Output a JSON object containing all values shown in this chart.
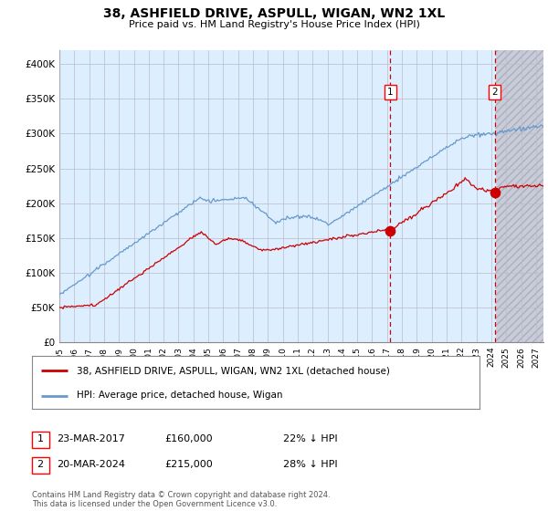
{
  "title": "38, ASHFIELD DRIVE, ASPULL, WIGAN, WN2 1XL",
  "subtitle": "Price paid vs. HM Land Registry's House Price Index (HPI)",
  "ylabel_ticks": [
    "£0",
    "£50K",
    "£100K",
    "£150K",
    "£200K",
    "£250K",
    "£300K",
    "£350K",
    "£400K"
  ],
  "ytick_values": [
    0,
    50000,
    100000,
    150000,
    200000,
    250000,
    300000,
    350000,
    400000
  ],
  "ylim": [
    0,
    420000
  ],
  "sale1_price": 160000,
  "sale1_label": "1",
  "sale1_text": "23-MAR-2017",
  "sale1_pct": "22% ↓ HPI",
  "sale2_price": 215000,
  "sale2_label": "2",
  "sale2_text": "20-MAR-2024",
  "sale2_pct": "28% ↓ HPI",
  "legend_house": "38, ASHFIELD DRIVE, ASPULL, WIGAN, WN2 1XL (detached house)",
  "legend_hpi": "HPI: Average price, detached house, Wigan",
  "footer": "Contains HM Land Registry data © Crown copyright and database right 2024.\nThis data is licensed under the Open Government Licence v3.0.",
  "house_color": "#cc0000",
  "hpi_color": "#6699cc",
  "grid_color": "#bbbbcc",
  "bg_plot": "#ddeeff",
  "xmin": 1995.0,
  "xmax": 2027.5,
  "sale1_x": 2017.22,
  "sale2_x": 2024.22,
  "xtick_start": 1995,
  "xtick_end": 2027
}
